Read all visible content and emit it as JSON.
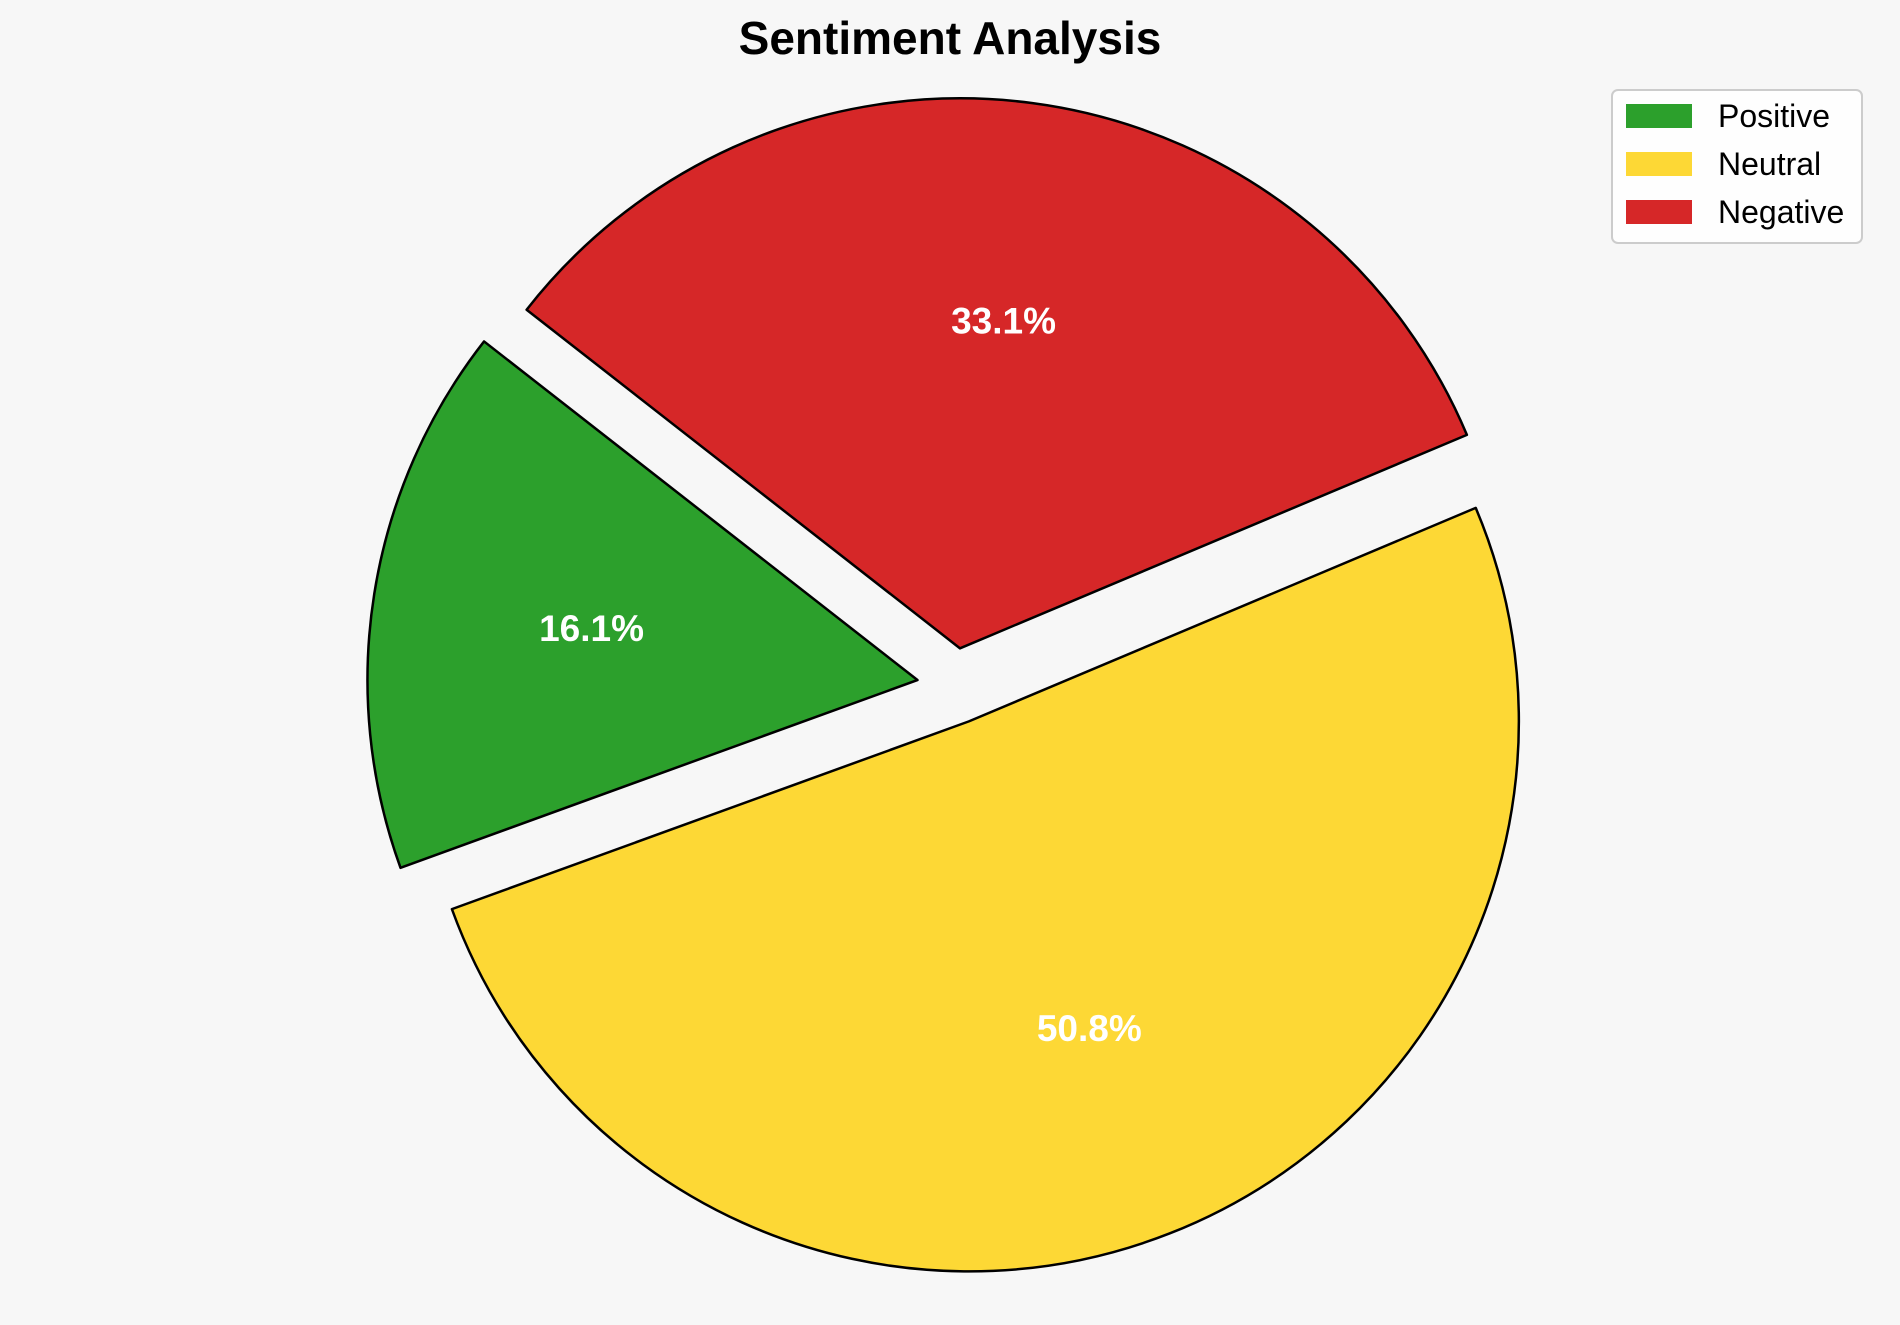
{
  "chart_data": {
    "type": "pie",
    "title": "Sentiment Analysis",
    "categories": [
      "Positive",
      "Neutral",
      "Negative"
    ],
    "values": [
      16.1,
      50.8,
      33.1
    ],
    "labels": [
      "16.1%",
      "50.8%",
      "33.1%"
    ],
    "colors": [
      "#2ca02c",
      "#fdd835",
      "#d62728"
    ],
    "exploded": true,
    "legend_position": "top-right"
  }
}
